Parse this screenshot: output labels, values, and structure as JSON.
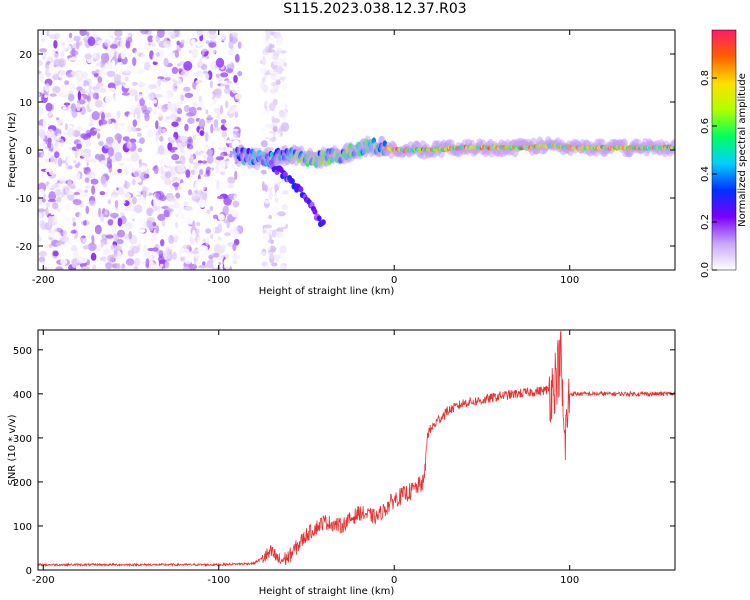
{
  "title": "S115.2023.038.12.37.R03",
  "colors": {
    "snr_line": "#e83030",
    "colormap": [
      "#ffffff",
      "#c9a6f6",
      "#7a00ff",
      "#0030ff",
      "#00d0ff",
      "#00ff60",
      "#b0ff00",
      "#ffe000",
      "#ff6000",
      "#ff1a6a"
    ]
  },
  "chart_data": [
    {
      "type": "heatmap",
      "xlabel": "Height of straight line (km)",
      "ylabel": "Frequency (Hz)",
      "xlim": [
        -203,
        160
      ],
      "ylim": [
        -25,
        25
      ],
      "x_ticks": [
        -200,
        -100,
        0,
        100
      ],
      "y_ticks": [
        -20,
        -10,
        0,
        10,
        20
      ],
      "colorbar": {
        "label": "Normalized spectral amplitude",
        "range": [
          0,
          1
        ],
        "ticks": [
          0.0,
          0.2,
          0.4,
          0.6,
          0.8
        ]
      },
      "regions": [
        {
          "x": [
            -203,
            -88
          ],
          "description": "broadband noise",
          "amplitude": [
            0,
            0.2
          ]
        },
        {
          "x": [
            -75,
            -62
          ],
          "description": "sparse noise",
          "amplitude": [
            0,
            0.1
          ]
        }
      ],
      "tone_track": [
        {
          "x": -90,
          "y": -1
        },
        {
          "x": -75,
          "y": -2
        },
        {
          "x": -60,
          "y": -1
        },
        {
          "x": -45,
          "y": -2
        },
        {
          "x": -30,
          "y": -1
        },
        {
          "x": -15,
          "y": 1
        },
        {
          "x": -5,
          "y": 0.5
        },
        {
          "x": 0,
          "y": 0
        },
        {
          "x": 20,
          "y": 0
        },
        {
          "x": 40,
          "y": 0.5
        },
        {
          "x": 70,
          "y": 0.5
        },
        {
          "x": 90,
          "y": 1
        },
        {
          "x": 100,
          "y": 0.5
        },
        {
          "x": 120,
          "y": 0.5
        },
        {
          "x": 160,
          "y": 0.5
        }
      ],
      "branch_track": [
        {
          "x": -70,
          "y": -3
        },
        {
          "x": -60,
          "y": -6
        },
        {
          "x": -50,
          "y": -10
        },
        {
          "x": -40,
          "y": -16
        }
      ]
    },
    {
      "type": "line",
      "xlabel": "Height of straight line (km)",
      "ylabel": "SNR (10 * v/v)",
      "xlim": [
        -203,
        160
      ],
      "ylim": [
        0,
        545
      ],
      "x_ticks": [
        -200,
        -100,
        0,
        100
      ],
      "y_ticks": [
        0,
        100,
        200,
        300,
        400,
        500
      ],
      "series": [
        {
          "x": [
            -203,
            -150,
            -100,
            -80,
            -70,
            -65,
            -60,
            -50,
            -40,
            -30,
            -20,
            -10,
            0,
            10,
            17,
            19,
            25,
            30,
            40,
            50,
            60,
            70,
            80,
            90,
            95,
            97,
            100,
            110,
            130,
            150,
            160
          ],
          "y": [
            12,
            12,
            12,
            15,
            40,
            20,
            30,
            80,
            110,
            100,
            130,
            120,
            160,
            180,
            200,
            310,
            340,
            360,
            380,
            385,
            395,
            400,
            405,
            410,
            480,
            280,
            400,
            400,
            400,
            400,
            400
          ]
        }
      ]
    }
  ]
}
